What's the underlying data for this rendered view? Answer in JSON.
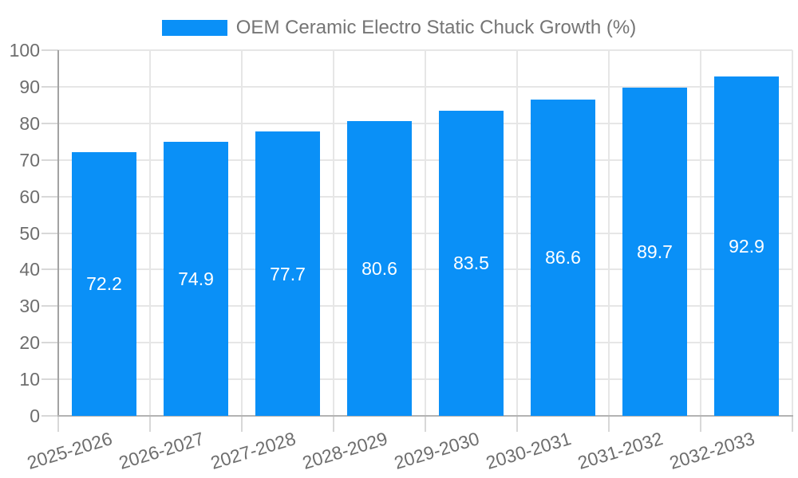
{
  "chart_data": {
    "type": "bar",
    "title": "",
    "legend_position": "top",
    "legend": [
      "OEM Ceramic Electro Static Chuck Growth (%)"
    ],
    "categories": [
      "2025-2026",
      "2026-2027",
      "2027-2028",
      "2028-2029",
      "2029-2030",
      "2030-2031",
      "2031-2032",
      "2032-2033"
    ],
    "series": [
      {
        "name": "OEM Ceramic Electro Static Chuck Growth (%)",
        "values": [
          72.2,
          74.9,
          77.7,
          80.6,
          83.5,
          86.6,
          89.7,
          92.9
        ],
        "value_labels": [
          "72.2",
          "74.9",
          "77.7",
          "80.6",
          "83.5",
          "86.6",
          "89.7",
          "92.9"
        ]
      }
    ],
    "xlabel": "",
    "ylabel": "",
    "ylim": [
      0,
      100
    ],
    "y_ticks": [
      0,
      10,
      20,
      30,
      40,
      50,
      60,
      70,
      80,
      90,
      100
    ],
    "grid": true,
    "value_label_position": "inside-center",
    "x_label_rotation_deg": -17
  },
  "colors": {
    "bar": "#0a90f7",
    "bar_label_text": "#ffffff",
    "legend_text": "#757575",
    "axis_label_text": "#6e6e6e",
    "gridline": "#e6e6e6",
    "axis_line": "#aaaaaa",
    "background": "#ffffff"
  }
}
